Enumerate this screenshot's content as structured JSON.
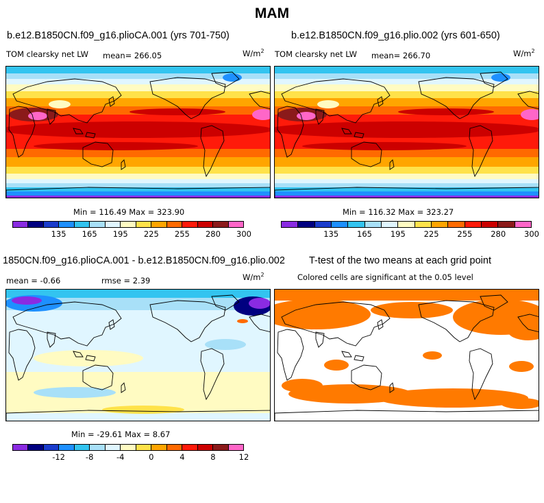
{
  "chart_data": [
    {
      "type": "heatmap",
      "season": "MAM",
      "title": "b.e12.B1850CN.f09_g16.plioCA.001 (yrs 701-750)",
      "variable": "TOM clearsky net LW",
      "units_base": "W/m",
      "units_exp": "2",
      "mean_text": "mean= 266.05",
      "mean": 266.05,
      "minmax_text": "Min = 116.49 Max = 323.90",
      "min": 116.49,
      "max": 323.9,
      "colorbar_ticks": [
        "135",
        "165",
        "195",
        "225",
        "255",
        "280",
        "300"
      ]
    },
    {
      "type": "heatmap",
      "title": "b.e12.B1850CN.f09_g16.plio.002 (yrs 601-650)",
      "variable": "TOM clearsky net LW",
      "units_base": "W/m",
      "units_exp": "2",
      "mean_text": "mean= 266.70",
      "mean": 266.7,
      "minmax_text": "Min = 116.32 Max = 323.27",
      "min": 116.32,
      "max": 323.27,
      "colorbar_ticks": [
        "135",
        "165",
        "195",
        "225",
        "255",
        "280",
        "300"
      ]
    },
    {
      "type": "heatmap",
      "title": "1850CN.f09_g16.plioCA.001 - b.e12.B1850CN.f09_g16.plio.002",
      "mean_text": "mean =   -0.66",
      "mean": -0.66,
      "rmse_text": "rmse =    2.39",
      "rmse": 2.39,
      "units_base": "W/m",
      "units_exp": "2",
      "minmax_text": "Min = -29.61 Max =   8.67",
      "min": -29.61,
      "max": 8.67,
      "colorbar_ticks": [
        "-12",
        "-8",
        "-4",
        "0",
        "4",
        "8",
        "12"
      ]
    },
    {
      "type": "heatmap",
      "title": "T-test of the two means at each grid point",
      "subtitle": "Colored cells are significant at the 0.05 level",
      "significance_level": 0.05
    }
  ],
  "header": {
    "title": "MAM"
  },
  "colors": {
    "palette": [
      "#8a2be2",
      "#000080",
      "#1a3ccc",
      "#1e90ff",
      "#33c4f0",
      "#a8e0f8",
      "#e0f6ff",
      "#fffbc2",
      "#ffe24a",
      "#ffa500",
      "#ff6a00",
      "#ff1a0a",
      "#cc0000",
      "#8b1a1a",
      "#ff66c8"
    ],
    "orange": "#ff7a00"
  }
}
